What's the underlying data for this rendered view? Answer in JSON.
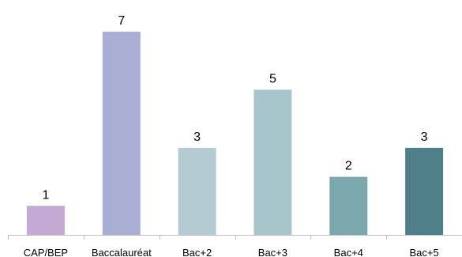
{
  "chart_data": {
    "type": "bar",
    "title": "",
    "xlabel": "",
    "ylabel": "",
    "categories": [
      "CAP/BEP",
      "Baccalauréat",
      "Bac+2",
      "Bac+3",
      "Bac+4",
      "Bac+5"
    ],
    "values": [
      1,
      7,
      3,
      5,
      2,
      3
    ],
    "colors": [
      "#c3a9d3",
      "#a8aed4",
      "#b5cbd3",
      "#a7c6cb",
      "#7aa8ad",
      "#4f7f88"
    ],
    "ylim": [
      0,
      7
    ],
    "grid": false,
    "legend": "none",
    "data_labels": true
  }
}
